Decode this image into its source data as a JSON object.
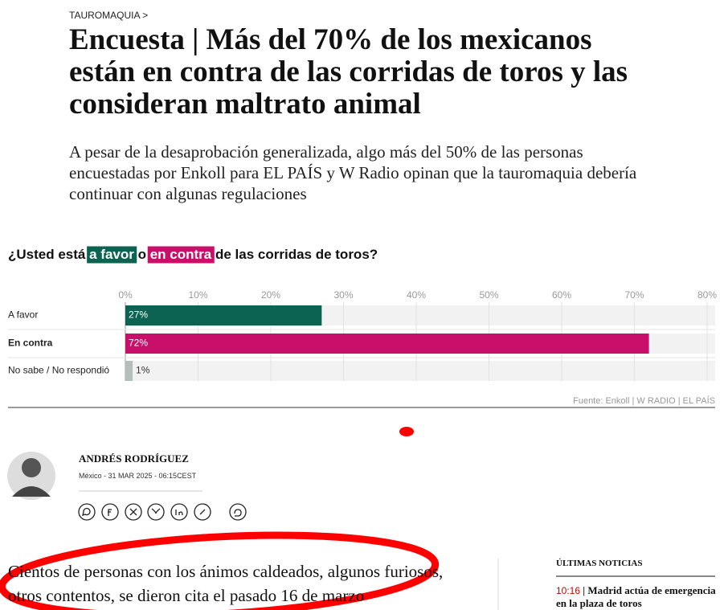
{
  "breadcrumb": "TAUROMAQUIA >",
  "headline": "Encuesta | Más del 70% de los mexicanos están en contra de las corridas de toros y las consideran maltrato animal",
  "subheadline": "A pesar de la desaprobación generalizada, algo más del 50% de las personas encuestadas por Enkoll para EL PAÍS y W Radio opinan que la tauromaquia debería continuar con algunas regulaciones",
  "chart_data": {
    "type": "bar",
    "orientation": "horizontal",
    "title_parts": [
      "¿Usted está",
      "a favor",
      "o",
      "en contra",
      "de las corridas de toros?"
    ],
    "categories": [
      "A favor",
      "En contra",
      "No sabe / No respondió"
    ],
    "values": [
      27,
      72,
      1
    ],
    "value_labels": [
      "27%",
      "72%",
      "1%"
    ],
    "colors": [
      "#0d6352",
      "#c8106a",
      "#b3bfbb"
    ],
    "xlim": [
      0,
      80
    ],
    "xticks": [
      {
        "value": 0,
        "label": "0%"
      },
      {
        "value": 10,
        "label": "10%"
      },
      {
        "value": 20,
        "label": "20%"
      },
      {
        "value": 30,
        "label": "30%"
      },
      {
        "value": 40,
        "label": "40%"
      },
      {
        "value": 50,
        "label": "50%"
      },
      {
        "value": 60,
        "label": "60%"
      },
      {
        "value": 70,
        "label": "70%"
      },
      {
        "value": 80,
        "label": "80%"
      }
    ],
    "grid": true,
    "source": "Fuente: Enkoll | W RADIO | EL PAÍS"
  },
  "author": {
    "name": "ANDRÉS RODRÍGUEZ",
    "dateline": "México - 31 MAR 2025 - 06:15",
    "timezone": "CEST"
  },
  "body": "Cientos de personas con los ánimos caldeados, algunos furiosos, otros contentos, se dieron cita el pasado 16 de marzo",
  "sidebar": {
    "title": "ÚLTIMAS NOTICIAS",
    "items": [
      {
        "time": "10:16",
        "headline": "Madrid actúa de emergencia en la plaza de toros"
      }
    ]
  }
}
